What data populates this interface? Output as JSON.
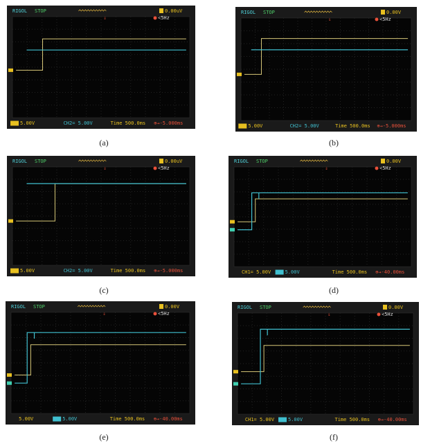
{
  "panels": [
    {
      "caption": "(a)",
      "status": [
        "RIGOL",
        "STOP"
      ],
      "trigger": "0.00uV",
      "freq": "<5Hz",
      "bottom": [
        "5.00V",
        "CH2= 5.00V",
        "Time 500.0ms",
        "⊕→-5.000ms"
      ]
    },
    {
      "caption": "(b)",
      "status": [
        "RIGOL",
        "STOP"
      ],
      "trigger": "0.00V",
      "freq": "<5Hz",
      "bottom": [
        "5.00V",
        "CH2= 5.00V",
        "Time 500.0ms",
        "⊕→-5.000ms"
      ]
    },
    {
      "caption": "(c)",
      "status": [
        "RIGOL",
        "STOP"
      ],
      "trigger": "0.00uV",
      "freq": "<5Hz",
      "bottom": [
        "5.00V",
        "CH2= 5.00V",
        "Time 500.0ms",
        "⊕→-5.000ms"
      ]
    },
    {
      "caption": "(d)",
      "status": [
        "RIGOL",
        "STOP"
      ],
      "trigger": "0.00V",
      "freq": "<5Hz",
      "bottom": [
        "CH1= 5.00V",
        "5.00V",
        "Time 500.0ms",
        "⊕→-40.00ms"
      ]
    },
    {
      "caption": "(e)",
      "status": [
        "RIGOL",
        "STOP"
      ],
      "trigger": "0.00V",
      "freq": "<5Hz",
      "bottom": [
        "5.00V",
        "5.00V",
        "Time 500.0ms",
        "⊕→-40.00ms"
      ]
    },
    {
      "caption": "(f)",
      "status": [
        "RIGOL",
        "STOP"
      ],
      "trigger": "0.00V",
      "freq": "<5Hz",
      "bottom": [
        "CH1= 5.00V",
        "5.00V",
        "Time 500.0ms",
        "⊕→-40.00ms"
      ]
    }
  ]
}
